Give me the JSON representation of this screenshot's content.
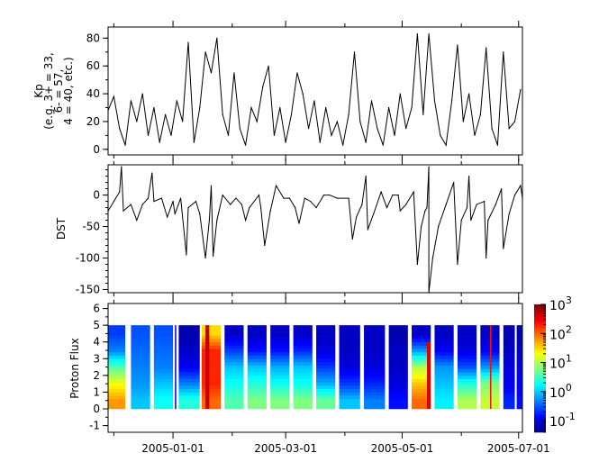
{
  "chart_data": [
    {
      "type": "line",
      "ylabel_lines": [
        "Kp",
        "(e.g. 3+ = 33,",
        "6- = 57,",
        "4 = 40, etc.)"
      ],
      "xlim": [
        "2004-11-28",
        "2005-07-03"
      ],
      "ylim": [
        -4,
        88
      ],
      "yticks": [
        0,
        20,
        40,
        60,
        80
      ],
      "color": "#000000",
      "dates": [
        "2004-11-28",
        "2004-12-01",
        "2004-12-04",
        "2004-12-07",
        "2004-12-10",
        "2004-12-13",
        "2004-12-16",
        "2004-12-19",
        "2004-12-22",
        "2004-12-25",
        "2004-12-28",
        "2004-12-31",
        "2005-01-03",
        "2005-01-06",
        "2005-01-09",
        "2005-01-12",
        "2005-01-15",
        "2005-01-18",
        "2005-01-21",
        "2005-01-24",
        "2005-01-27",
        "2005-01-30",
        "2005-02-02",
        "2005-02-05",
        "2005-02-08",
        "2005-02-11",
        "2005-02-14",
        "2005-02-17",
        "2005-02-20",
        "2005-02-23",
        "2005-02-26",
        "2005-03-01",
        "2005-03-04",
        "2005-03-07",
        "2005-03-10",
        "2005-03-13",
        "2005-03-16",
        "2005-03-19",
        "2005-03-22",
        "2005-03-25",
        "2005-03-28",
        "2005-03-31",
        "2005-04-03",
        "2005-04-06",
        "2005-04-09",
        "2005-04-12",
        "2005-04-15",
        "2005-04-18",
        "2005-04-21",
        "2005-04-24",
        "2005-04-27",
        "2005-04-30",
        "2005-05-03",
        "2005-05-06",
        "2005-05-09",
        "2005-05-12",
        "2005-05-15",
        "2005-05-18",
        "2005-05-21",
        "2005-05-24",
        "2005-05-27",
        "2005-05-30",
        "2005-06-02",
        "2005-06-05",
        "2005-06-08",
        "2005-06-11",
        "2005-06-14",
        "2005-06-17",
        "2005-06-20",
        "2005-06-23",
        "2005-06-26",
        "2005-06-29",
        "2005-07-02"
      ],
      "values": [
        28,
        38,
        15,
        3,
        35,
        20,
        40,
        10,
        30,
        5,
        25,
        10,
        35,
        20,
        77,
        5,
        30,
        70,
        55,
        80,
        25,
        10,
        55,
        15,
        3,
        30,
        20,
        45,
        60,
        10,
        30,
        5,
        25,
        55,
        40,
        15,
        35,
        5,
        30,
        10,
        20,
        3,
        25,
        70,
        20,
        5,
        35,
        15,
        3,
        30,
        10,
        40,
        15,
        30,
        83,
        25,
        83,
        35,
        10,
        3,
        35,
        75,
        20,
        40,
        10,
        25,
        73,
        15,
        3,
        70,
        15,
        20,
        43
      ]
    },
    {
      "type": "line",
      "ylabel": "DST",
      "xlim": [
        "2004-11-28",
        "2005-07-03"
      ],
      "ylim": [
        -155,
        48
      ],
      "yticks": [
        0,
        -50,
        -100,
        -150
      ],
      "color": "#000000",
      "points": [
        [
          "2004-11-28",
          -25
        ],
        [
          "2004-12-01",
          -10
        ],
        [
          "2004-12-04",
          5
        ],
        [
          "2004-12-05",
          45
        ],
        [
          "2004-12-06",
          -25
        ],
        [
          "2004-12-10",
          -15
        ],
        [
          "2004-12-13",
          -40
        ],
        [
          "2004-12-16",
          -15
        ],
        [
          "2004-12-19",
          -5
        ],
        [
          "2004-12-21",
          35
        ],
        [
          "2004-12-22",
          -10
        ],
        [
          "2004-12-26",
          -5
        ],
        [
          "2004-12-29",
          -35
        ],
        [
          "2005-01-01",
          -10
        ],
        [
          "2005-01-02",
          -30
        ],
        [
          "2005-01-05",
          -5
        ],
        [
          "2005-01-08",
          -95
        ],
        [
          "2005-01-09",
          -20
        ],
        [
          "2005-01-13",
          -10
        ],
        [
          "2005-01-15",
          -30
        ],
        [
          "2005-01-18",
          -100
        ],
        [
          "2005-01-20",
          -40
        ],
        [
          "2005-01-21",
          15
        ],
        [
          "2005-01-22",
          -97
        ],
        [
          "2005-01-24",
          -40
        ],
        [
          "2005-01-27",
          0
        ],
        [
          "2005-01-31",
          -15
        ],
        [
          "2005-02-03",
          -5
        ],
        [
          "2005-02-06",
          -15
        ],
        [
          "2005-02-08",
          -40
        ],
        [
          "2005-02-10",
          -20
        ],
        [
          "2005-02-15",
          0
        ],
        [
          "2005-02-16",
          -20
        ],
        [
          "2005-02-18",
          -80
        ],
        [
          "2005-02-21",
          -25
        ],
        [
          "2005-02-24",
          15
        ],
        [
          "2005-02-28",
          -5
        ],
        [
          "2005-03-03",
          -5
        ],
        [
          "2005-03-06",
          -20
        ],
        [
          "2005-03-08",
          -45
        ],
        [
          "2005-03-11",
          -5
        ],
        [
          "2005-03-14",
          -10
        ],
        [
          "2005-03-17",
          -20
        ],
        [
          "2005-03-21",
          0
        ],
        [
          "2005-03-24",
          0
        ],
        [
          "2005-03-28",
          -5
        ],
        [
          "2005-04-03",
          -5
        ],
        [
          "2005-04-05",
          -70
        ],
        [
          "2005-04-07",
          -35
        ],
        [
          "2005-04-10",
          -15
        ],
        [
          "2005-04-12",
          30
        ],
        [
          "2005-04-13",
          -55
        ],
        [
          "2005-04-16",
          -30
        ],
        [
          "2005-04-20",
          5
        ],
        [
          "2005-04-23",
          -20
        ],
        [
          "2005-04-26",
          0
        ],
        [
          "2005-04-29",
          0
        ],
        [
          "2005-04-30",
          -25
        ],
        [
          "2005-05-03",
          -15
        ],
        [
          "2005-05-07",
          5
        ],
        [
          "2005-05-09",
          -110
        ],
        [
          "2005-05-11",
          -50
        ],
        [
          "2005-05-13",
          -25
        ],
        [
          "2005-05-14",
          -20
        ],
        [
          "2005-05-15",
          45
        ],
        [
          "2005-05-15",
          -160
        ],
        [
          "2005-05-17",
          -100
        ],
        [
          "2005-05-20",
          -50
        ],
        [
          "2005-05-24",
          -15
        ],
        [
          "2005-05-28",
          20
        ],
        [
          "2005-05-30",
          -110
        ],
        [
          "2005-06-01",
          -40
        ],
        [
          "2005-06-04",
          -20
        ],
        [
          "2005-06-05",
          30
        ],
        [
          "2005-06-06",
          -40
        ],
        [
          "2005-06-09",
          -15
        ],
        [
          "2005-06-13",
          -10
        ],
        [
          "2005-06-14",
          -100
        ],
        [
          "2005-06-15",
          -40
        ],
        [
          "2005-06-19",
          -15
        ],
        [
          "2005-06-22",
          10
        ],
        [
          "2005-06-23",
          -85
        ],
        [
          "2005-06-26",
          -30
        ],
        [
          "2005-06-29",
          0
        ],
        [
          "2005-07-02",
          15
        ],
        [
          "2005-07-03",
          -5
        ]
      ]
    },
    {
      "type": "heatmap",
      "ylabel": "Proton Flux",
      "xlim": [
        "2004-11-28",
        "2005-07-03"
      ],
      "ylim": [
        -1.4,
        6.3
      ],
      "yticks": [
        -1,
        0,
        1,
        2,
        3,
        4,
        5,
        6
      ],
      "y_bins_center": [
        0.5,
        1.5,
        2.5,
        3.5,
        4.5
      ],
      "colorscale": "jet",
      "color_log_range": [
        -1.4,
        3
      ],
      "colorbar_ticks": [
        {
          "base": "10",
          "exp": "-1",
          "log": -1
        },
        {
          "base": "10",
          "exp": "0",
          "log": 0
        },
        {
          "base": "10",
          "exp": "1",
          "log": 1
        },
        {
          "base": "10",
          "exp": "2",
          "log": 2
        },
        {
          "base": "10",
          "exp": "3",
          "log": 3
        }
      ],
      "segments": [
        {
          "start": "2004-11-28",
          "end": "2004-12-07",
          "log_flux": [
            1.8,
            1.3,
            0.6,
            -0.3,
            -0.6
          ]
        },
        {
          "start": "2004-12-10",
          "end": "2004-12-20",
          "log_flux": [
            0,
            -0.2,
            -0.3,
            -0.4,
            -0.5
          ]
        },
        {
          "start": "2004-12-22",
          "end": "2005-01-01",
          "log_flux": [
            0.3,
            0,
            -0.3,
            -0.4,
            -0.5
          ]
        },
        {
          "start": "2005-01-02",
          "end": "2005-01-02",
          "log_flux": [
            -1,
            -1,
            -1,
            -1,
            -1
          ]
        },
        {
          "start": "2005-01-04",
          "end": "2005-01-15",
          "log_flux": [
            0.4,
            -0.3,
            -0.9,
            -1.1,
            -1.2
          ]
        },
        {
          "start": "2005-01-16",
          "end": "2005-01-26",
          "log_flux": [
            2.0,
            2.3,
            2.3,
            2.3,
            1.5
          ]
        },
        {
          "start": "2005-01-28",
          "end": "2005-02-07",
          "log_flux": [
            0.6,
            0.3,
            0,
            -0.6,
            -1.1
          ]
        },
        {
          "start": "2005-02-09",
          "end": "2005-02-19",
          "log_flux": [
            0.8,
            0.4,
            0,
            -0.8,
            -1.1
          ]
        },
        {
          "start": "2005-02-21",
          "end": "2005-03-03",
          "log_flux": [
            0.8,
            0.3,
            -0.1,
            -0.8,
            -1.1
          ]
        },
        {
          "start": "2005-03-05",
          "end": "2005-03-15",
          "log_flux": [
            0.8,
            0.3,
            0,
            -0.7,
            -1.1
          ]
        },
        {
          "start": "2005-03-17",
          "end": "2005-03-27",
          "log_flux": [
            0.7,
            -0.1,
            -0.6,
            -1,
            -1.1
          ]
        },
        {
          "start": "2005-03-29",
          "end": "2005-04-09",
          "log_flux": [
            0,
            -0.6,
            -1,
            -1.1,
            -1.1
          ]
        },
        {
          "start": "2005-04-11",
          "end": "2005-04-22",
          "log_flux": [
            -0.3,
            -0.7,
            -1,
            -1.1,
            -1.1
          ]
        },
        {
          "start": "2005-04-24",
          "end": "2005-05-04",
          "log_flux": [
            -0.8,
            -1,
            -1.1,
            -1.1,
            -1.2
          ]
        },
        {
          "start": "2005-05-06",
          "end": "2005-05-16",
          "log_flux": [
            2.0,
            1.6,
            1.0,
            -0.2,
            -1.1
          ]
        },
        {
          "start": "2005-05-18",
          "end": "2005-05-28",
          "log_flux": [
            0.2,
            0,
            -0.2,
            -0.9,
            -1.1
          ]
        },
        {
          "start": "2005-05-30",
          "end": "2005-06-09",
          "log_flux": [
            1.0,
            0.4,
            -0.5,
            -1,
            -1.1
          ]
        },
        {
          "start": "2005-06-11",
          "end": "2005-06-21",
          "log_flux": [
            1.1,
            0.8,
            -0.2,
            -0.9,
            -1.1
          ]
        },
        {
          "start": "2005-06-23",
          "end": "2005-06-29",
          "log_flux": [
            -0.7,
            -0.9,
            -1,
            -1.1,
            -1.2
          ]
        },
        {
          "start": "2005-06-30",
          "end": "2005-07-03",
          "log_flux": [
            -0.8,
            -0.9,
            -1,
            -1.1,
            -1.2
          ]
        }
      ],
      "hot_columns": [
        {
          "start": "2005-01-18",
          "end": "2005-01-20",
          "log_flux": 2.7,
          "l_range": [
            0,
            5
          ]
        },
        {
          "start": "2005-05-14",
          "end": "2005-05-16",
          "log_flux": 2.6,
          "l_range": [
            0,
            4
          ]
        },
        {
          "start": "2005-06-16",
          "end": "2005-06-16",
          "log_flux": 2.4,
          "l_range": [
            0,
            5
          ]
        }
      ]
    }
  ],
  "x_axis": {
    "major_ticks": [
      "2005-01-01",
      "2005-03-01",
      "2005-05-01",
      "2005-07-01"
    ],
    "minor_ticks": [
      "2004-12-01",
      "2005-02-01",
      "2005-04-01",
      "2005-06-01"
    ]
  }
}
